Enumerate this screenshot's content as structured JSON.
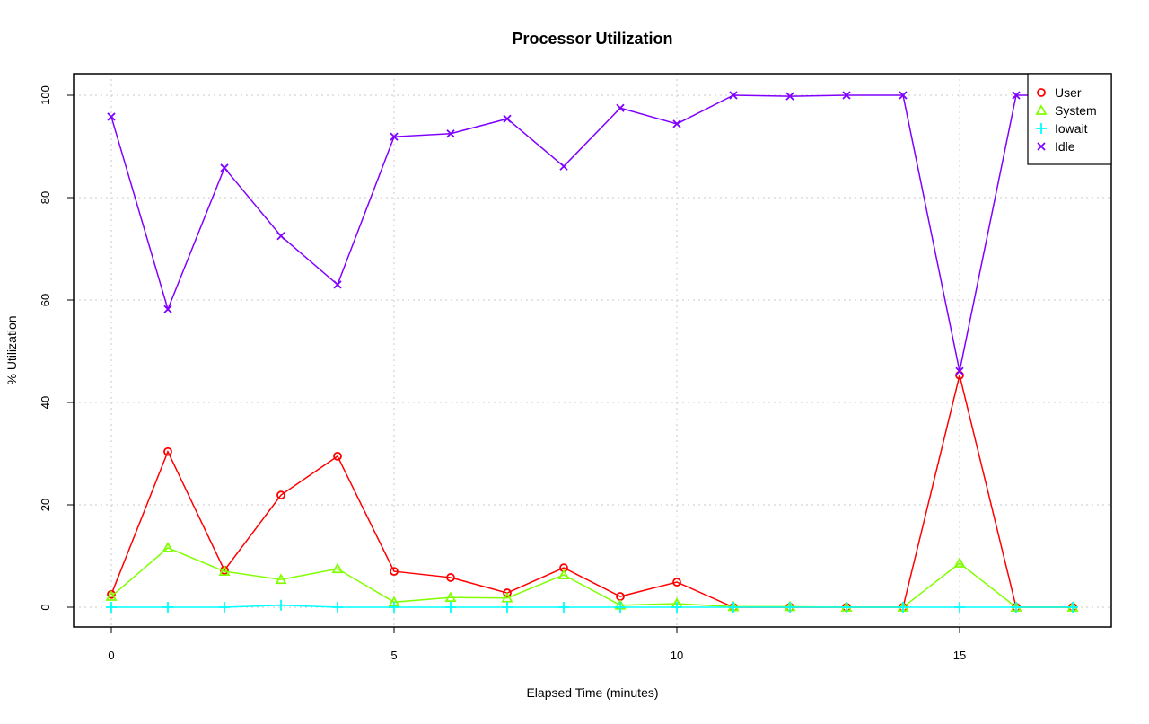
{
  "chart_data": {
    "type": "line",
    "title": "Processor Utilization",
    "xlabel": "Elapsed Time (minutes)",
    "ylabel": "% Utilization",
    "xlim": [
      -0.68,
      17.68
    ],
    "ylim": [
      -4,
      104
    ],
    "xticks": [
      0,
      5,
      10,
      15
    ],
    "yticks": [
      0,
      20,
      40,
      60,
      80,
      100
    ],
    "grid": true,
    "legend_position": "top-right",
    "x": [
      0,
      1,
      2,
      3,
      4,
      5,
      6,
      7,
      8,
      9,
      10,
      11,
      12,
      13,
      14,
      15,
      16,
      17
    ],
    "series": [
      {
        "name": "User",
        "color": "#ff0000",
        "marker": "circle",
        "values": [
          2.5,
          30.4,
          7.2,
          21.9,
          29.5,
          7.0,
          5.8,
          2.8,
          7.7,
          2.1,
          4.9,
          0,
          0,
          0,
          0,
          45.3,
          0,
          0
        ]
      },
      {
        "name": "System",
        "color": "#80ff00",
        "marker": "triangle",
        "values": [
          2.1,
          11.6,
          7.0,
          5.4,
          7.5,
          1.0,
          1.9,
          1.8,
          6.3,
          0.4,
          0.7,
          0.1,
          0.1,
          0,
          0,
          8.6,
          0,
          0
        ]
      },
      {
        "name": "Iowait",
        "color": "#00ffff",
        "marker": "plus",
        "values": [
          0,
          0,
          0,
          0.4,
          0,
          0,
          0,
          0,
          0,
          0,
          0,
          0,
          0,
          0,
          0,
          0,
          0,
          0
        ]
      },
      {
        "name": "Idle",
        "color": "#8000ff",
        "marker": "cross",
        "values": [
          95.8,
          58.2,
          85.8,
          72.5,
          63.0,
          91.9,
          92.5,
          95.4,
          86.1,
          97.5,
          94.4,
          100,
          99.8,
          100,
          100,
          46.1,
          100,
          100
        ]
      }
    ]
  }
}
